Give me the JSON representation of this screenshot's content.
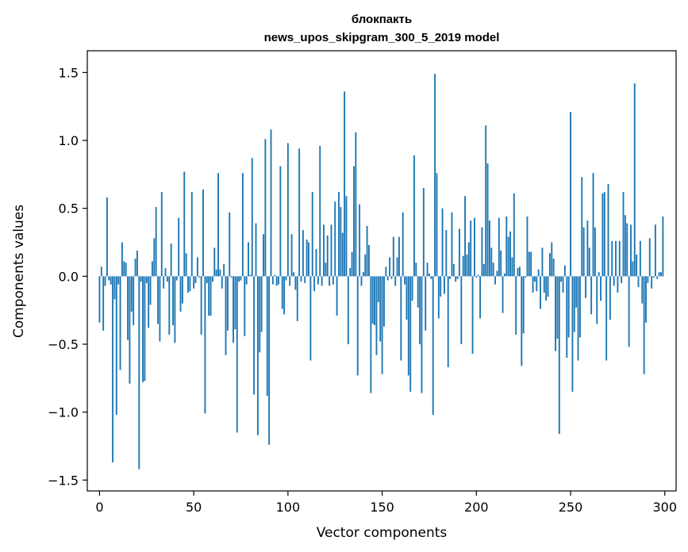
{
  "chart_data": {
    "type": "bar",
    "title_line1": "блокпакть",
    "title_line2": "news_upos_skipgram_300_5_2019 model",
    "xlabel": "Vector components",
    "ylabel": "Components values",
    "xlim": [
      -6.5,
      306
    ],
    "ylim": [
      -1.58,
      1.66
    ],
    "x_ticks": [
      0,
      50,
      100,
      150,
      200,
      250,
      300
    ],
    "y_ticks": [
      1.5,
      1.0,
      0.5,
      0.0,
      -0.5,
      -1.0,
      -1.5
    ],
    "y_tick_labels": [
      "1.5",
      "1.0",
      "0.5",
      "0.0",
      "−0.5",
      "−1.0",
      "−1.5"
    ],
    "grid": false,
    "legend": "none",
    "bar_color": "#1f77b4",
    "values": [
      -0.34,
      0.07,
      -0.4,
      -0.07,
      0.58,
      -0.03,
      -0.06,
      -1.37,
      -0.17,
      -1.02,
      -0.06,
      -0.69,
      0.25,
      0.11,
      0.1,
      -0.47,
      -0.79,
      -0.26,
      -0.36,
      0.13,
      0.19,
      -1.42,
      -0.04,
      -0.78,
      -0.77,
      -0.05,
      -0.38,
      -0.21,
      0.11,
      0.28,
      0.51,
      -0.35,
      -0.48,
      0.62,
      -0.09,
      0.06,
      -0.04,
      -0.43,
      0.24,
      -0.36,
      -0.49,
      -0.03,
      0.43,
      -0.26,
      -0.2,
      0.77,
      0.17,
      -0.12,
      -0.11,
      0.62,
      -0.09,
      -0.05,
      0.14,
      -0.01,
      -0.43,
      0.64,
      -1.01,
      -0.05,
      -0.29,
      -0.29,
      -0.04,
      0.21,
      0.05,
      0.76,
      0.05,
      -0.09,
      0.09,
      -0.58,
      -0.4,
      0.47,
      -0.01,
      -0.49,
      -0.39,
      -1.15,
      -0.04,
      -0.03,
      0.76,
      -0.44,
      -0.06,
      0.25,
      0.01,
      0.87,
      -0.87,
      0.39,
      -1.17,
      -0.56,
      -0.41,
      0.31,
      1.01,
      -0.88,
      -1.24,
      1.08,
      -0.06,
      0.01,
      -0.07,
      -0.06,
      0.81,
      -0.24,
      -0.28,
      -0.03,
      0.98,
      -0.07,
      0.31,
      0.03,
      -0.1,
      -0.33,
      0.94,
      -0.04,
      0.34,
      -0.05,
      0.27,
      0.25,
      -0.62,
      0.62,
      -0.11,
      0.2,
      -0.06,
      0.96,
      -0.07,
      0.38,
      0.1,
      0.3,
      -0.07,
      0.38,
      -0.06,
      0.55,
      -0.29,
      0.62,
      0.51,
      0.32,
      1.36,
      0.59,
      -0.5,
      0.06,
      0.18,
      0.81,
      1.06,
      -0.73,
      0.53,
      -0.07,
      0.03,
      0.16,
      0.37,
      0.23,
      -0.86,
      -0.35,
      -0.36,
      -0.58,
      -0.19,
      -0.48,
      -0.72,
      -0.37,
      0.07,
      -0.03,
      0.14,
      -0.02,
      0.29,
      -0.07,
      0.14,
      0.29,
      -0.62,
      0.47,
      -0.06,
      -0.32,
      -0.73,
      -0.85,
      -0.18,
      0.89,
      0.1,
      -0.23,
      -0.5,
      -0.86,
      0.65,
      -0.4,
      0.1,
      0.02,
      -0.02,
      -1.02,
      1.49,
      0.76,
      -0.31,
      -0.15,
      0.5,
      -0.13,
      0.34,
      -0.67,
      -0.02,
      0.47,
      0.09,
      -0.04,
      -0.02,
      0.35,
      -0.5,
      0.15,
      0.59,
      0.16,
      0.25,
      0.41,
      -0.57,
      0.43,
      -0.01,
      0.01,
      -0.31,
      0.36,
      0.09,
      1.11,
      0.83,
      0.41,
      0.21,
      0.1,
      -0.06,
      0.04,
      0.43,
      0.19,
      -0.27,
      0.02,
      0.44,
      0.29,
      0.33,
      0.14,
      0.61,
      -0.43,
      0.06,
      0.07,
      -0.66,
      -0.42,
      -0.01,
      0.44,
      0.18,
      0.18,
      -0.12,
      -0.04,
      -0.11,
      0.05,
      -0.24,
      0.21,
      -0.12,
      -0.18,
      -0.15,
      0.17,
      0.25,
      0.13,
      -0.55,
      -0.46,
      -1.16,
      -0.04,
      -0.12,
      0.08,
      -0.6,
      -0.45,
      1.21,
      -0.85,
      -0.41,
      -0.23,
      -0.62,
      -0.45,
      0.73,
      0.36,
      -0.16,
      0.41,
      0.21,
      -0.28,
      0.76,
      0.36,
      -0.35,
      0.03,
      -0.18,
      0.61,
      0.62,
      -0.62,
      0.68,
      -0.32,
      0.26,
      -0.07,
      0.26,
      -0.12,
      0.26,
      -0.05,
      0.62,
      0.45,
      0.39,
      -0.52,
      0.38,
      0.11,
      1.42,
      0.16,
      -0.08,
      0.26,
      -0.2,
      -0.72,
      -0.34,
      -0.05,
      0.28,
      -0.09,
      -0.01,
      0.38,
      -0.02,
      0.03,
      0.03,
      0.44
    ]
  }
}
